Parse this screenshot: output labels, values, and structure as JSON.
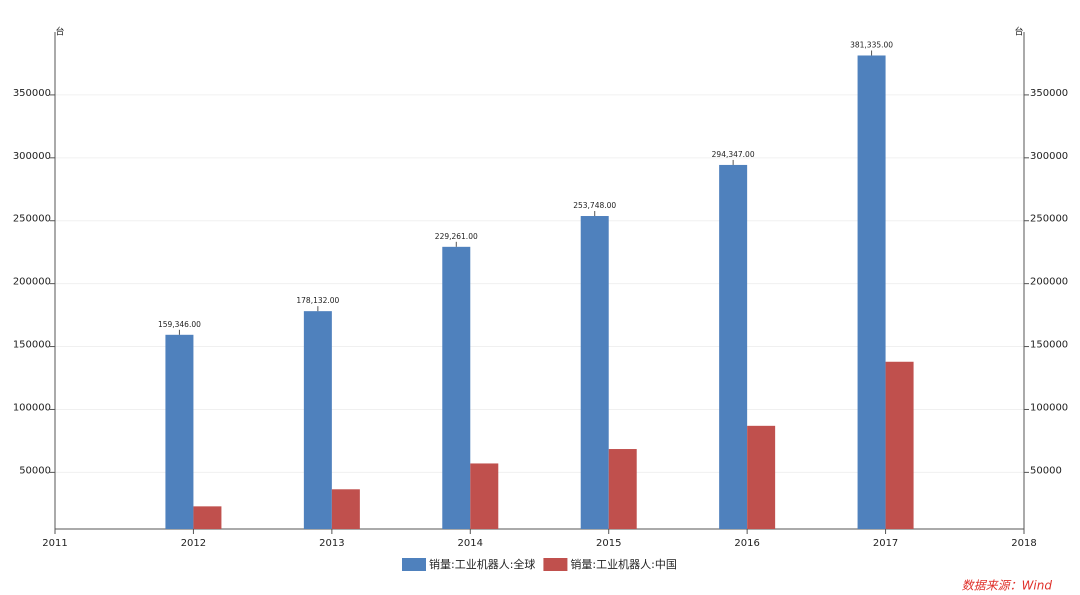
{
  "chart_data": {
    "type": "bar",
    "y_unit": "台",
    "x": [
      2012,
      2013,
      2014,
      2015,
      2016,
      2017
    ],
    "xlim": [
      2011,
      2018
    ],
    "xticks": [
      2011,
      2012,
      2013,
      2014,
      2015,
      2016,
      2017,
      2018
    ],
    "ylim": [
      5000,
      400000
    ],
    "yticks": [
      50000,
      100000,
      150000,
      200000,
      250000,
      300000,
      350000
    ],
    "grid": true,
    "series": [
      {
        "name": "销量:工业机器人:全球",
        "color": "#4f81bd",
        "values": [
          159346,
          178132,
          229261,
          253748,
          294347,
          381335
        ],
        "value_labels": [
          "159,346.00",
          "178,132.00",
          "229,261.00",
          "253,748.00",
          "294,347.00",
          "381,335.00"
        ]
      },
      {
        "name": "销量:工业机器人:中国",
        "color": "#c0504d",
        "values": [
          23000,
          36560,
          57096,
          68556,
          87000,
          137920
        ]
      }
    ],
    "source": "数据来源：Wind"
  }
}
